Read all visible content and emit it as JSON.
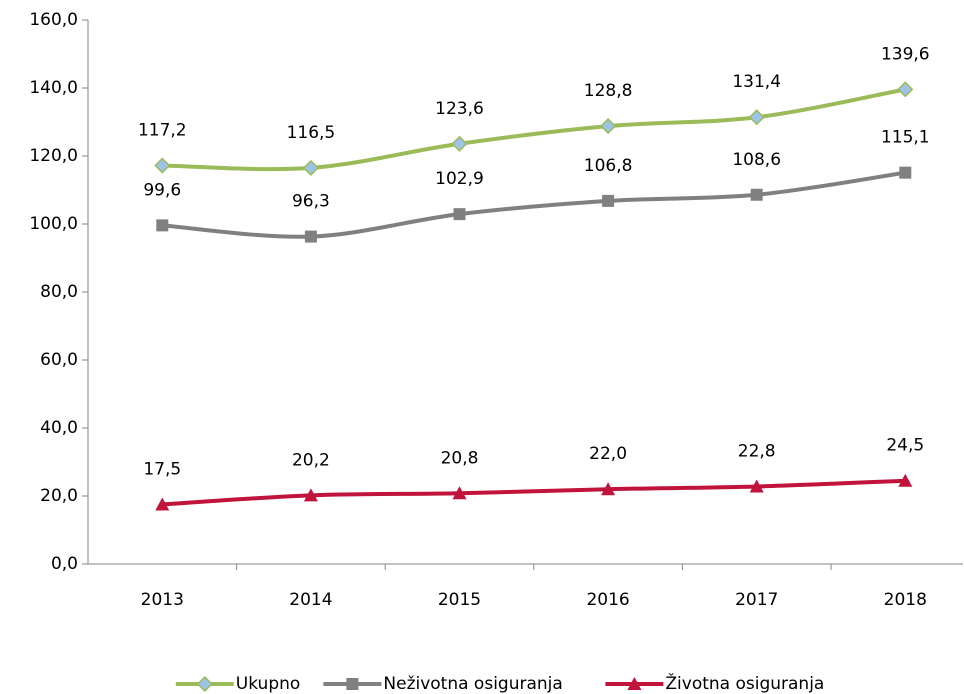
{
  "chart_data": {
    "type": "line",
    "categories": [
      "2013",
      "2014",
      "2015",
      "2016",
      "2017",
      "2018"
    ],
    "series": [
      {
        "name": "Ukupno",
        "color": "#9bbb59",
        "marker": "diamond",
        "marker_fill": "#9dc3e6",
        "values": [
          117.2,
          116.5,
          123.6,
          128.8,
          131.4,
          139.6
        ],
        "value_labels": [
          "117,2",
          "116,5",
          "123,6",
          "128,8",
          "131,4",
          "139,6"
        ]
      },
      {
        "name": "Neživotna osiguranja",
        "color": "#808080",
        "marker": "square",
        "marker_fill": "#808080",
        "values": [
          99.6,
          96.3,
          102.9,
          106.8,
          108.6,
          115.1
        ],
        "value_labels": [
          "99,6",
          "96,3",
          "102,9",
          "106,8",
          "108,6",
          "115,1"
        ]
      },
      {
        "name": "Životna osiguranja",
        "color": "#c0143c",
        "marker": "triangle",
        "marker_fill": "#c0143c",
        "values": [
          17.5,
          20.2,
          20.8,
          22.0,
          22.8,
          24.5
        ],
        "value_labels": [
          "17,5",
          "20,2",
          "20,8",
          "22,0",
          "22,8",
          "24,5"
        ]
      }
    ],
    "ylim": [
      0,
      160
    ],
    "yticks": [
      {
        "value": 0,
        "label": "0,0"
      },
      {
        "value": 20,
        "label": "20,0"
      },
      {
        "value": 40,
        "label": "40,0"
      },
      {
        "value": 60,
        "label": "60,0"
      },
      {
        "value": 80,
        "label": "80,0"
      },
      {
        "value": 100,
        "label": "100,0"
      },
      {
        "value": 120,
        "label": "120,0"
      },
      {
        "value": 140,
        "label": "140,0"
      },
      {
        "value": 160,
        "label": "160,0"
      }
    ],
    "grid": false,
    "smooth": true,
    "legend": "bottom"
  }
}
